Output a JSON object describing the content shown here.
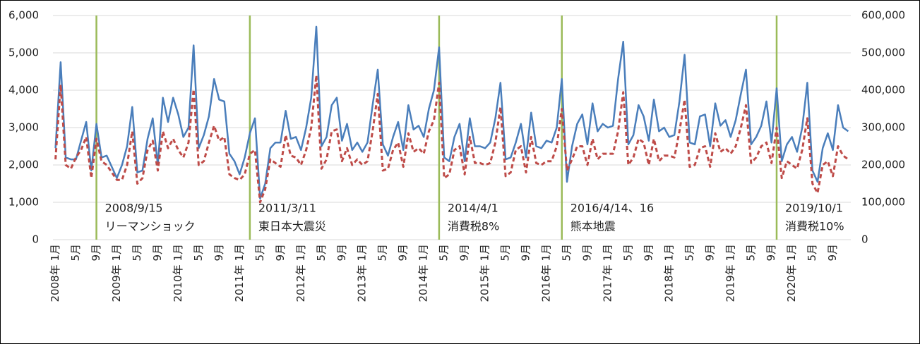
{
  "chart_data": {
    "type": "line",
    "categories": [
      "2008年 1月",
      null,
      null,
      null,
      "5月",
      null,
      null,
      null,
      "9月",
      null,
      null,
      null,
      "2009年 1月",
      null,
      null,
      null,
      "5月",
      null,
      null,
      null,
      "9月",
      null,
      null,
      null,
      "2010年 1月",
      null,
      null,
      null,
      "5月",
      null,
      null,
      null,
      "9月",
      null,
      null,
      null,
      "2011年 1月",
      null,
      null,
      null,
      "5月",
      null,
      null,
      null,
      "9月",
      null,
      null,
      null,
      "2012年 1月",
      null,
      null,
      null,
      "5月",
      null,
      null,
      null,
      "9月",
      null,
      null,
      null,
      "2013年 1月",
      null,
      null,
      null,
      "5月",
      null,
      null,
      null,
      "9月",
      null,
      null,
      null,
      "2014年 1月",
      null,
      null,
      null,
      "5月",
      null,
      null,
      null,
      "9月",
      null,
      null,
      null,
      "2015年 1月",
      null,
      null,
      null,
      "5月",
      null,
      null,
      null,
      "9月",
      null,
      null,
      null,
      "2016年 1月",
      null,
      null,
      null,
      "5月",
      null,
      null,
      null,
      "9月",
      null,
      null,
      null,
      "2017年 1月",
      null,
      null,
      null,
      "5月",
      null,
      null,
      null,
      "9月",
      null,
      null,
      null,
      "2018年 1月",
      null,
      null,
      null,
      "5月",
      null,
      null,
      null,
      "9月",
      null,
      null,
      null,
      "2019年 1月",
      null,
      null,
      null,
      "5月",
      null,
      null,
      null,
      "9月",
      null,
      null,
      null,
      "2020年 1月",
      null,
      null,
      null,
      "5月",
      null,
      null,
      null,
      "9月",
      null,
      null,
      null
    ],
    "series": [
      {
        "color": "#4a7ebb",
        "dash": false,
        "values": [
          2450,
          4750,
          2200,
          2150,
          2150,
          2650,
          3150,
          1850,
          3100,
          2200,
          2250,
          1950,
          1650,
          2000,
          2500,
          3550,
          1800,
          1850,
          2700,
          3250,
          2000,
          3800,
          3150,
          3800,
          3350,
          2750,
          3000,
          5200,
          2450,
          2800,
          3300,
          4300,
          3750,
          3700,
          2300,
          2100,
          1750,
          2200,
          2850,
          3250,
          1100,
          1500,
          2450,
          2600,
          2600,
          3450,
          2700,
          2750,
          2400,
          3000,
          3800,
          5700,
          2500,
          2750,
          3600,
          3800,
          2650,
          3100,
          2400,
          2600,
          2350,
          2600,
          3600,
          4550,
          2550,
          2250,
          2750,
          3150,
          2400,
          3600,
          2950,
          3050,
          2750,
          3500,
          4000,
          5150,
          2200,
          2100,
          2750,
          3100,
          2100,
          3250,
          2500,
          2500,
          2450,
          2600,
          3250,
          4200,
          2150,
          2200,
          2600,
          3100,
          2200,
          3400,
          2500,
          2450,
          2650,
          2600,
          3000,
          4300,
          1550,
          2500,
          3100,
          3350,
          2550,
          3650,
          2900,
          3100,
          3000,
          3050,
          4300,
          5300,
          2550,
          2800,
          3600,
          3300,
          2650,
          3750,
          2900,
          3000,
          2750,
          2800,
          3700,
          4950,
          2600,
          2550,
          3300,
          3350,
          2500,
          3650,
          3050,
          3200,
          2750,
          3200,
          3900,
          4550,
          2550,
          2750,
          3050,
          3700,
          2600,
          4050,
          2100,
          2550,
          2750,
          2350,
          3000,
          4200,
          1850,
          1550,
          2450,
          2850,
          2400,
          3600,
          3000,
          2900
        ]
      },
      {
        "color": "#be4b48",
        "dash": true,
        "axis": "y2",
        "values": [
          215000,
          415000,
          200000,
          190000,
          220000,
          240000,
          275000,
          165000,
          270000,
          210000,
          200000,
          180000,
          160000,
          160000,
          200000,
          290000,
          150000,
          165000,
          240000,
          265000,
          185000,
          290000,
          245000,
          270000,
          240000,
          220000,
          260000,
          402000,
          200000,
          210000,
          260000,
          305000,
          265000,
          275000,
          175000,
          165000,
          160000,
          175000,
          230000,
          240000,
          100000,
          135000,
          215000,
          205000,
          195000,
          280000,
          225000,
          220000,
          200000,
          240000,
          300000,
          440000,
          190000,
          215000,
          290000,
          295000,
          210000,
          245000,
          200000,
          215000,
          200000,
          210000,
          290000,
          390000,
          185000,
          190000,
          240000,
          260000,
          195000,
          285000,
          235000,
          245000,
          230000,
          290000,
          320000,
          420000,
          165000,
          175000,
          240000,
          250000,
          175000,
          275000,
          205000,
          205000,
          200000,
          205000,
          260000,
          355000,
          170000,
          180000,
          240000,
          250000,
          180000,
          275000,
          205000,
          200000,
          210000,
          210000,
          250000,
          350000,
          185000,
          215000,
          250000,
          250000,
          200000,
          270000,
          215000,
          230000,
          230000,
          230000,
          290000,
          395000,
          200000,
          220000,
          270000,
          260000,
          200000,
          270000,
          210000,
          225000,
          225000,
          220000,
          290000,
          375000,
          195000,
          200000,
          245000,
          250000,
          195000,
          285000,
          235000,
          245000,
          230000,
          250000,
          300000,
          360000,
          205000,
          220000,
          250000,
          260000,
          205000,
          300000,
          165000,
          210000,
          200000,
          190000,
          240000,
          325000,
          150000,
          125000,
          200000,
          210000,
          170000,
          250000,
          225000,
          215000
        ]
      }
    ],
    "ylim": [
      0,
      6000
    ],
    "yticks": [
      0,
      {
        "value": 1000,
        "label": "1,000"
      },
      {
        "value": 2000,
        "label": "2,000"
      },
      {
        "value": 3000,
        "label": "3,000"
      },
      {
        "value": 4000,
        "label": "4,000"
      },
      {
        "value": 5000,
        "label": "5,000"
      },
      {
        "value": 6000,
        "label": "6,000"
      }
    ],
    "y2lim": [
      0,
      600000
    ],
    "y2ticks": [
      0,
      {
        "value": 100000,
        "label": "100,000"
      },
      {
        "value": 200000,
        "label": "200,000"
      },
      {
        "value": 300000,
        "label": "300,000"
      },
      {
        "value": 400000,
        "label": "400,000"
      },
      {
        "value": 500000,
        "label": "500,000"
      },
      {
        "value": 600000,
        "label": "600,000"
      }
    ],
    "grid": true,
    "event_color": "#9bbb59",
    "annotations": [
      {
        "date": "2008/9/15",
        "label": "リーマンショック"
      },
      {
        "date": "2011/3/11",
        "label": "東日本大震災"
      },
      {
        "date": "2014/4/1",
        "label": "消費税8%"
      },
      {
        "date": "2016/4/14、16",
        "label": "熊本地震"
      },
      {
        "date": "2019/10/1",
        "label": "消費税10%"
      }
    ]
  }
}
